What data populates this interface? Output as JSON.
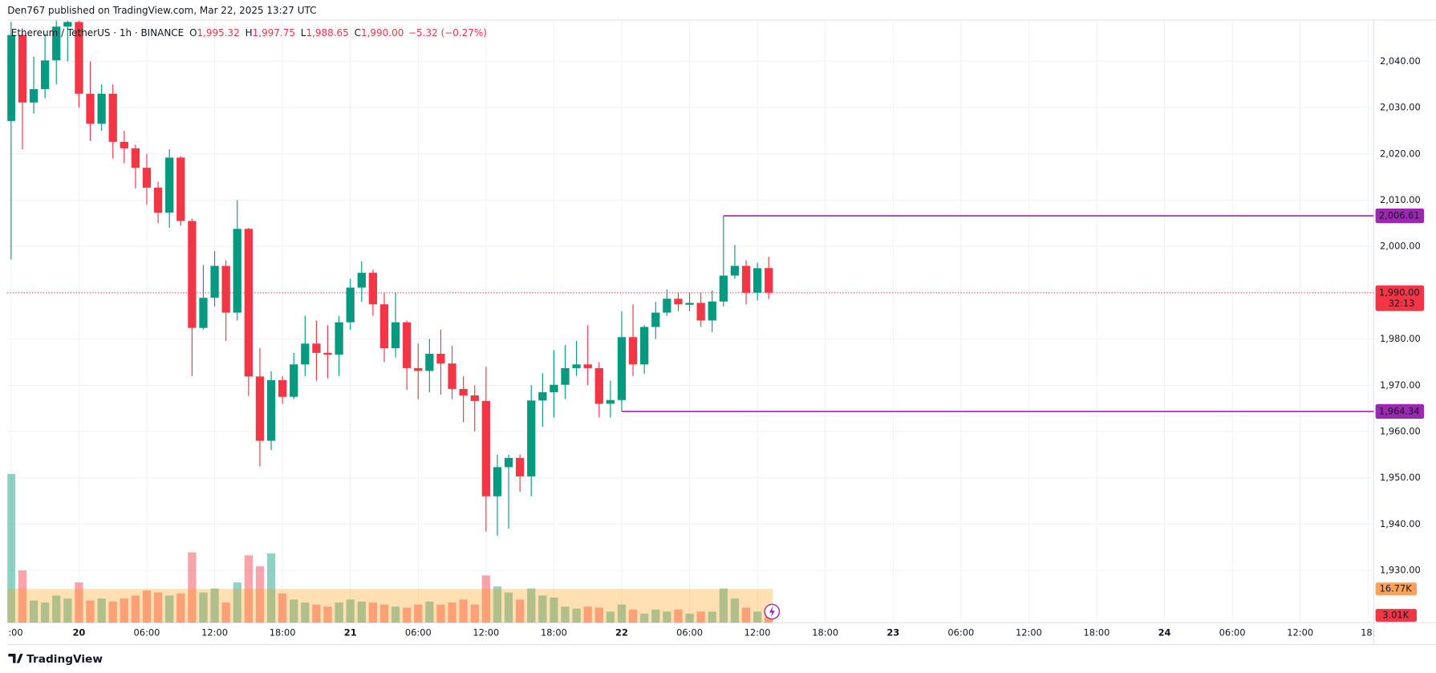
{
  "header": "Den767 published on TradingView.com, Mar 22, 2025 13:27 UTC",
  "footer": "TradingView",
  "chart_data": {
    "type": "candlestick",
    "symbol": "Ethereum / TetherUS · 1h · BINANCE",
    "legend": [
      {
        "key": "O",
        "value": 1995.32,
        "label": "1,995.32"
      },
      {
        "key": "H",
        "value": 1997.75,
        "label": "1,997.75"
      },
      {
        "key": "L",
        "value": 1988.65,
        "label": "1,988.65"
      },
      {
        "key": "C",
        "value": 1990.0,
        "label": "1,990.00"
      }
    ],
    "change": "−5.32 (−0.27%)",
    "legend_color": "#f23645",
    "up_color": "#089981",
    "down_color": "#f23645",
    "open": [
      2027.1,
      2045.7,
      2031.1,
      2034,
      2040.2,
      2047.5,
      2048.5,
      2033,
      2026.5,
      2033,
      2022.6,
      2021.2,
      2017,
      2012.7,
      2007.3,
      2019.2,
      2005.5,
      1982.4,
      1988.9,
      1995.8,
      1985.7,
      2003.8,
      1971.9,
      1958,
      1971.1,
      1967.5,
      1974.5,
      1979,
      1977,
      1976.6,
      1983.6,
      1991.1,
      1994.3,
      1987.5,
      1978,
      1983.6,
      1973.7,
      1973.1,
      1976.8,
      1974.7,
      1969.2,
      1967.8,
      1966.6,
      1946,
      1952.3,
      1954.3,
      1950.3,
      1966.7,
      1968.5,
      1970.1,
      1973.7,
      1974.5,
      1973.7,
      1966,
      1966.8,
      1980.4,
      1974.5,
      1982.6,
      1985.7,
      1988.7,
      1987.4,
      1987.8,
      1984,
      1988.1,
      1993.7,
      1995.8,
      1990,
      1995.32
    ],
    "high": [
      2048.5,
      2046.5,
      2041,
      2046,
      2048.8,
      2048.8,
      2048.8,
      2040,
      2035,
      2035,
      2025,
      2022,
      2020,
      2014,
      2021,
      2019.5,
      2006,
      1996,
      1999,
      1997,
      2010,
      2004,
      1978,
      1973,
      1972,
      1977,
      1985,
      1984,
      1983,
      1985,
      1993,
      1996.8,
      1995,
      1990,
      1990,
      1984,
      1979,
      1980,
      1982,
      1978.5,
      1972,
      1970,
      1974,
      1955,
      1955,
      1955,
      1970,
      1972.6,
      1977.6,
      1978.7,
      1979.6,
      1983,
      1975,
      1971,
      1986,
      1987.5,
      1983,
      1988,
      1990.7,
      1990,
      1990,
      1990,
      1990.5,
      2006.61,
      2000.3,
      1997,
      1996.5,
      1997.75
    ],
    "low": [
      1997.2,
      2021,
      2028.7,
      2032,
      2035,
      2040,
      2030,
      2022.8,
      2025,
      2019,
      2018,
      2012.5,
      2009,
      2005,
      2004,
      2004.5,
      1972,
      1982,
      1987,
      1979.6,
      1984,
      1967.7,
      1952.5,
      1956,
      1966,
      1967,
      1972,
      1971,
      1971.5,
      1972,
      1982,
      1988,
      1985,
      1975,
      1976,
      1969,
      1967,
      1968.5,
      1968,
      1967,
      1962,
      1960,
      1938.4,
      1937.5,
      1939,
      1947,
      1946,
      1961,
      1963,
      1967,
      1972,
      1970,
      1963,
      1963,
      1964.34,
      1972,
      1972.5,
      1980,
      1985,
      1986,
      1986,
      1982.6,
      1981.5,
      1987,
      1993,
      1987.5,
      1988.3,
      1988.65
    ],
    "close": [
      2045.7,
      2031.1,
      2034,
      2040.2,
      2047.5,
      2048.5,
      2033,
      2026.5,
      2033,
      2022.6,
      2021.2,
      2017,
      2012.7,
      2007.3,
      2019.2,
      2005.5,
      1982.4,
      1988.9,
      1995.8,
      1985.7,
      2003.8,
      1971.9,
      1958,
      1971.1,
      1967.5,
      1974.5,
      1979,
      1977,
      1976.6,
      1983.6,
      1991.1,
      1994.3,
      1987.5,
      1978,
      1983.6,
      1973.7,
      1973.1,
      1976.8,
      1974.7,
      1969.2,
      1967.8,
      1966.6,
      1946,
      1952.3,
      1954.3,
      1950.3,
      1966.7,
      1968.5,
      1970.1,
      1973.7,
      1974.5,
      1973.7,
      1966,
      1966.8,
      1980.4,
      1974.5,
      1982.6,
      1985.7,
      1988.7,
      1987.5,
      1987.8,
      1984,
      1988.1,
      1993.7,
      1995.8,
      1990,
      1995.3,
      1990
    ],
    "volume": [
      74,
      26,
      11,
      10,
      13.5,
      12,
      20,
      11,
      12,
      10.5,
      12,
      13.5,
      16,
      15,
      13.5,
      14.5,
      35,
      15,
      17,
      10,
      20,
      33.5,
      28,
      34.5,
      14.5,
      11.5,
      10,
      9,
      8,
      10,
      11.5,
      10.5,
      10,
      9,
      8,
      7.5,
      9,
      10.5,
      9,
      10,
      11.5,
      9,
      23.5,
      18,
      15,
      11.5,
      17,
      13.5,
      12.5,
      8,
      7,
      8,
      7.5,
      5.5,
      9,
      6.5,
      4.5,
      6.5,
      5.5,
      6.5,
      4.5,
      5.5,
      5.5,
      17,
      12,
      7.5,
      5.5,
      3.01
    ],
    "volume_ma": 16.77,
    "xlim": [
      -0.33,
      120.5
    ],
    "ylim": [
      1918.7,
      2048.9
    ],
    "vlim": [
      0,
      300
    ],
    "grid": true,
    "yticks": [
      {
        "value": 1930,
        "label": "1,930.00"
      },
      {
        "value": 1940,
        "label": "1,940.00"
      },
      {
        "value": 1950,
        "label": "1,950.00"
      },
      {
        "value": 1960,
        "label": "1,960.00"
      },
      {
        "value": 1970,
        "label": "1,970.00"
      },
      {
        "value": 1980,
        "label": "1,980.00"
      },
      {
        "value": 1990,
        "label": "1,990.00"
      },
      {
        "value": 2000,
        "label": "2,000.00"
      },
      {
        "value": 2010,
        "label": "2,010.00"
      },
      {
        "value": 2020,
        "label": "2,020.00"
      },
      {
        "value": 2030,
        "label": "2,030.00"
      },
      {
        "value": 2040,
        "label": "2,040.00"
      }
    ],
    "xticks": [
      {
        "value": 0,
        "label": ":00"
      },
      {
        "value": 6,
        "label": "20"
      },
      {
        "value": 12,
        "label": "06:00"
      },
      {
        "value": 18,
        "label": "12:00"
      },
      {
        "value": 24,
        "label": "18:00"
      },
      {
        "value": 30,
        "label": "21"
      },
      {
        "value": 36,
        "label": "06:00"
      },
      {
        "value": 42,
        "label": "12:00"
      },
      {
        "value": 48,
        "label": "18:00"
      },
      {
        "value": 54,
        "label": "22"
      },
      {
        "value": 60,
        "label": "06:00"
      },
      {
        "value": 66,
        "label": "12:00"
      },
      {
        "value": 72,
        "label": "18:00"
      },
      {
        "value": 78,
        "label": "23"
      },
      {
        "value": 84,
        "label": "06:00"
      },
      {
        "value": 90,
        "label": "12:00"
      },
      {
        "value": 96,
        "label": "18:00"
      },
      {
        "value": 102,
        "label": "24"
      },
      {
        "value": 108,
        "label": "06:00"
      },
      {
        "value": 114,
        "label": "12:00"
      },
      {
        "value": 120,
        "label": "18:"
      }
    ],
    "levels": [
      {
        "value": 2006.61,
        "label": "2,006.61",
        "color": "#9c27b0"
      },
      {
        "value": 1964.34,
        "label": "1,964.34",
        "color": "#9c27b0"
      }
    ],
    "last_price": {
      "value": 1990.0,
      "label": "1,990.00",
      "countdown": "32:13",
      "color": "#f23645"
    },
    "volume_labels": [
      {
        "value": 16.77,
        "label": "16.77K",
        "color": "#f7a35c"
      },
      {
        "value": 3.01,
        "label": "3.01K",
        "color": "#f23645"
      }
    ]
  }
}
